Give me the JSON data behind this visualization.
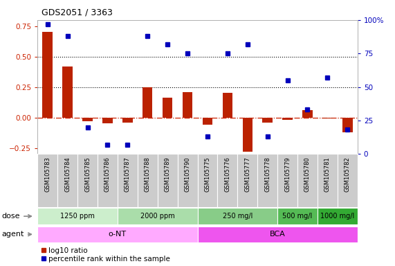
{
  "title": "GDS2051 / 3363",
  "samples": [
    "GSM105783",
    "GSM105784",
    "GSM105785",
    "GSM105786",
    "GSM105787",
    "GSM105788",
    "GSM105789",
    "GSM105790",
    "GSM105775",
    "GSM105776",
    "GSM105777",
    "GSM105778",
    "GSM105779",
    "GSM105780",
    "GSM105781",
    "GSM105782"
  ],
  "log10_ratio": [
    0.7,
    0.42,
    -0.03,
    -0.05,
    -0.04,
    0.25,
    0.16,
    0.21,
    -0.06,
    0.2,
    -0.28,
    -0.04,
    -0.02,
    0.06,
    -0.01,
    -0.12
  ],
  "percentile_rank": [
    97,
    88,
    20,
    7,
    7,
    88,
    82,
    75,
    13,
    75,
    82,
    13,
    55,
    33,
    57,
    18
  ],
  "ylim_left": [
    -0.3,
    0.8
  ],
  "ylim_right": [
    0,
    100
  ],
  "yticks_left": [
    -0.25,
    0.0,
    0.25,
    0.5,
    0.75
  ],
  "yticks_right": [
    0,
    25,
    50,
    75,
    100
  ],
  "hlines_dotted": [
    0.25,
    0.5
  ],
  "bar_color": "#bb2200",
  "dot_color": "#0000bb",
  "zero_line_color": "#cc2200",
  "dose_groups": [
    {
      "label": "1250 ppm",
      "start": 0,
      "end": 4,
      "color": "#cceecc"
    },
    {
      "label": "2000 ppm",
      "start": 4,
      "end": 8,
      "color": "#aaddaa"
    },
    {
      "label": "250 mg/l",
      "start": 8,
      "end": 12,
      "color": "#88cc88"
    },
    {
      "label": "500 mg/l",
      "start": 12,
      "end": 14,
      "color": "#55bb55"
    },
    {
      "label": "1000 mg/l",
      "start": 14,
      "end": 16,
      "color": "#33aa33"
    }
  ],
  "agent_groups": [
    {
      "label": "o-NT",
      "start": 0,
      "end": 8,
      "color": "#ffaaff"
    },
    {
      "label": "BCA",
      "start": 8,
      "end": 16,
      "color": "#ee55ee"
    }
  ],
  "dose_row_label": "dose",
  "agent_row_label": "agent",
  "legend_bar_label": "log10 ratio",
  "legend_dot_label": "percentile rank within the sample",
  "bar_legend_color": "#bb2200",
  "dot_legend_color": "#0000bb",
  "background_color": "#ffffff",
  "tick_label_color_left": "#cc2200",
  "tick_label_color_right": "#0000bb",
  "label_area_color": "#cccccc",
  "figsize": [
    5.71,
    3.84
  ],
  "dpi": 100
}
